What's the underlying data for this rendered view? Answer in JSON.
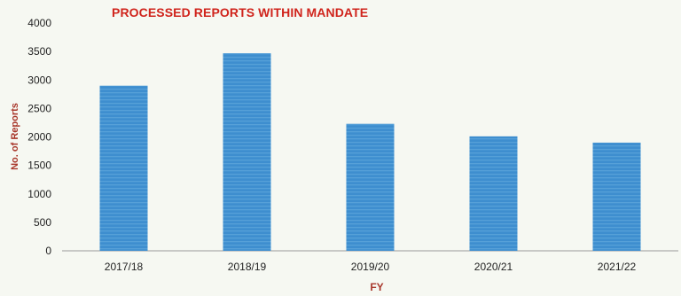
{
  "chart_data": {
    "type": "bar",
    "title": "PROCESSED REPORTS WITHIN MANDATE",
    "xlabel": "FY",
    "ylabel": "No. of Reports",
    "categories": [
      "2017/18",
      "2018/19",
      "2019/20",
      "2020/21",
      "2021/22"
    ],
    "values": [
      2900,
      3470,
      2230,
      2010,
      1900
    ],
    "ylim": [
      0,
      4000
    ],
    "yticks": [
      0,
      500,
      1000,
      1500,
      2000,
      2500,
      3000,
      3500,
      4000
    ],
    "grid": false,
    "legend": "none",
    "colors": {
      "bar": "#3e8ecf",
      "bar_stripe": "#6aaee0",
      "title": "#d0241c",
      "axis_label": "#a8362a",
      "tick_label": "#222222",
      "axis_line": "#9a9a9a"
    }
  }
}
